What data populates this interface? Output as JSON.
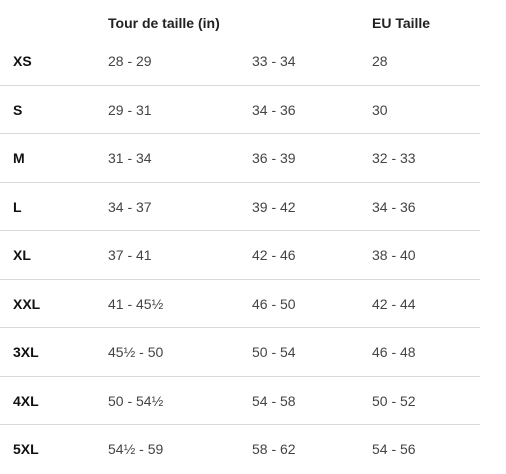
{
  "table": {
    "headers": {
      "size": "",
      "waist_in": "Tour de taille (in)",
      "waist_in_secondary": "",
      "eu": "EU Taille"
    },
    "rows": [
      {
        "size": "XS",
        "in_range_1": "28 - 29",
        "in_range_2": "33 - 34",
        "eu": "28"
      },
      {
        "size": "S",
        "in_range_1": "29 - 31",
        "in_range_2": "34 - 36",
        "eu": "30"
      },
      {
        "size": "M",
        "in_range_1": "31 - 34",
        "in_range_2": "36 - 39",
        "eu": "32 - 33"
      },
      {
        "size": "L",
        "in_range_1": "34 - 37",
        "in_range_2": "39 - 42",
        "eu": "34 - 36"
      },
      {
        "size": "XL",
        "in_range_1": "37 - 41",
        "in_range_2": "42 - 46",
        "eu": "38 - 40"
      },
      {
        "size": "XXL",
        "in_range_1": "41 - 45½",
        "in_range_2": "46 - 50",
        "eu": "42 - 44"
      },
      {
        "size": "3XL",
        "in_range_1": "45½ - 50",
        "in_range_2": "50 - 54",
        "eu": "46 - 48"
      },
      {
        "size": "4XL",
        "in_range_1": "50 - 54½",
        "in_range_2": "54 - 58",
        "eu": "50 - 52"
      },
      {
        "size": "5XL",
        "in_range_1": "54½ - 59",
        "in_range_2": "58 - 62",
        "eu": "54 - 56"
      }
    ],
    "colors": {
      "text": "#222222",
      "divider": "#d9d9d9",
      "background": "#ffffff"
    }
  }
}
